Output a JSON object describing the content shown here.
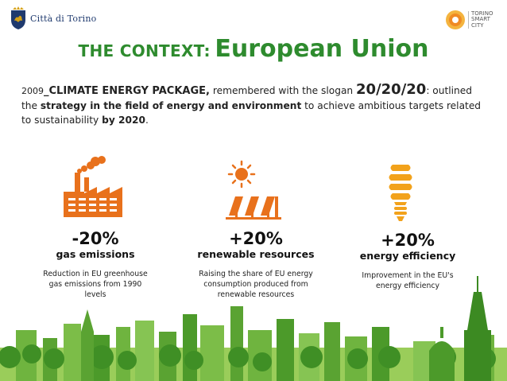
{
  "header": {
    "org_name": "Città di Torino",
    "partner_logo_lines": [
      "TORINO",
      "SMART",
      "CITY"
    ]
  },
  "title": {
    "prefix": "THE CONTEXT:",
    "main": "European Union"
  },
  "intro": {
    "year": "2009",
    "separator": "_",
    "package_name": "CLIMATE ENERGY PACKAGE,",
    "text_before_slogan": " remembered with the slogan ",
    "slogan": "20/20/20",
    "after_slogan": ":",
    "text_outlined": " outlined the ",
    "strategy": "strategy in the field of energy and environment",
    "text_achieve": " to achieve ambitious targets related to sustainability ",
    "deadline": "by 2020",
    "period": "."
  },
  "targets": [
    {
      "value": "-20%",
      "label": "gas emissions",
      "description_lines": [
        "Reduction in EU greenhouse",
        "gas emissions from 1990",
        "levels"
      ],
      "icon": "factory-icon"
    },
    {
      "value": "+20%",
      "label": "renewable resources",
      "description_lines": [
        "Raising the share of EU energy",
        "consumption produced from",
        "renewable resources"
      ],
      "icon": "solar-panels-icon"
    },
    {
      "value": "+20%",
      "label": "energy efficiency",
      "description_lines": [
        "Improvement in the EU's",
        "energy efficiency"
      ],
      "icon": "lightbulb-icon"
    }
  ],
  "colors": {
    "title_green": "#2e8b2e",
    "icon_orange": "#e8711c",
    "bulb_orange": "#f2a21b",
    "skyline_green": "#4c9a2a",
    "crest_blue": "#1f3a6e"
  }
}
